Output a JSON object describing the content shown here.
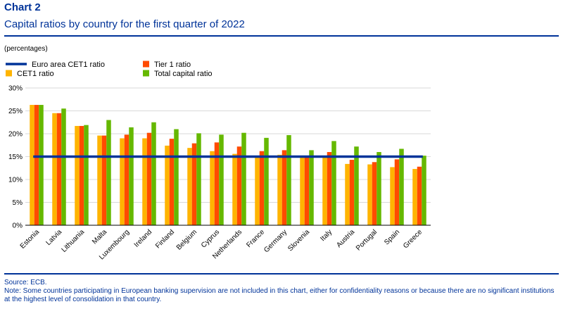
{
  "header": {
    "chart_label": "Chart 2",
    "title": "Capital ratios by country for the first quarter of 2022",
    "units": "(percentages)"
  },
  "footer": {
    "source": "Source: ECB.",
    "note": "Note: Some countries participating in European banking supervision are not included in this chart, either for confidentiality reasons or because there are no significant institutions at the highest level of consolidation in that country."
  },
  "colors": {
    "euro_area_line": "#003399",
    "cet1": "#FFB400",
    "tier1": "#FF4B00",
    "total": "#65B800",
    "grid": "#d9d9d9",
    "axis": "#000000"
  },
  "chart_data": {
    "type": "bar",
    "categories": [
      "Estonia",
      "Latvia",
      "Lithuania",
      "Malta",
      "Luxembourg",
      "Ireland",
      "Finland",
      "Belgium",
      "Cyprus",
      "Netherlands",
      "France",
      "Germany",
      "Slovenia",
      "Italy",
      "Austria",
      "Portugal",
      "Spain",
      "Greece"
    ],
    "series": [
      {
        "name": "CET1 ratio",
        "values": [
          26.3,
          24.5,
          21.7,
          19.6,
          19.0,
          19.0,
          17.4,
          16.9,
          16.2,
          15.6,
          15.2,
          15.4,
          15.2,
          15.1,
          13.4,
          13.3,
          12.7,
          12.3
        ]
      },
      {
        "name": "Tier 1 ratio",
        "values": [
          26.3,
          24.5,
          21.7,
          19.6,
          19.8,
          20.2,
          18.9,
          17.9,
          18.1,
          17.2,
          16.2,
          16.4,
          15.2,
          16.0,
          14.3,
          13.8,
          14.4,
          12.8
        ]
      },
      {
        "name": "Total capital ratio",
        "values": [
          26.3,
          25.5,
          21.9,
          23.0,
          21.4,
          22.5,
          21.0,
          20.1,
          19.8,
          20.2,
          19.1,
          19.7,
          16.4,
          18.4,
          17.2,
          16.0,
          16.7,
          15.2
        ]
      }
    ],
    "reference_line": {
      "name": "Euro area CET1 ratio",
      "value": 15.0
    },
    "legend": [
      {
        "name": "Euro area CET1 ratio",
        "marker": "line"
      },
      {
        "name": "Tier 1 ratio",
        "marker": "box"
      },
      {
        "name": "CET1 ratio",
        "marker": "box"
      },
      {
        "name": "Total capital ratio",
        "marker": "box"
      }
    ],
    "ylim": [
      0,
      30
    ],
    "yticks": [
      "0%",
      "5%",
      "10%",
      "15%",
      "20%",
      "25%",
      "30%"
    ],
    "grid": true,
    "legend_position": "top-left"
  }
}
